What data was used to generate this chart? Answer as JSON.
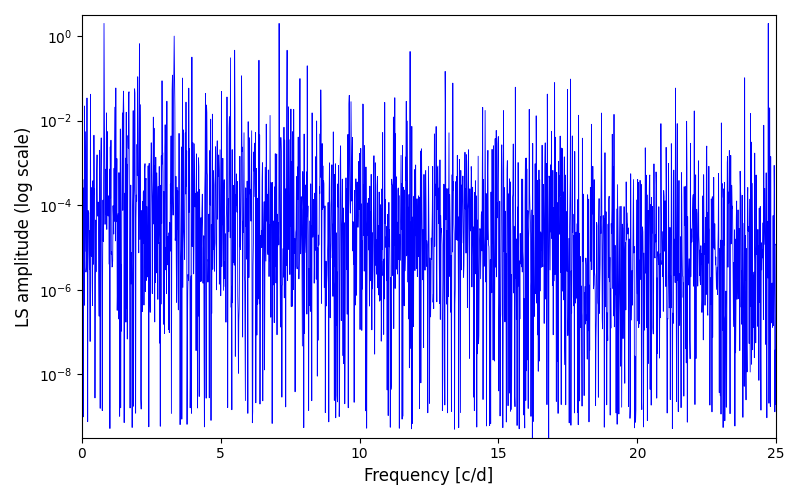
{
  "xlabel": "Frequency [c/d]",
  "ylabel": "LS amplitude (log scale)",
  "line_color": "#0000ff",
  "xlim": [
    0,
    25
  ],
  "ylim_log_min": -9.5,
  "ylim_log_max": 0.5,
  "freq_min": 0.0,
  "freq_max": 25.0,
  "n_points": 2000,
  "seed": 77,
  "peak1_freq": 3.33,
  "peak1_amp": 1.0,
  "peak2_freq": 1.5,
  "peak2_amp": 0.05,
  "background_color": "#ffffff",
  "figsize": [
    8.0,
    5.0
  ],
  "dpi": 100,
  "label_fontsize": 12,
  "tick_fontsize": 10
}
